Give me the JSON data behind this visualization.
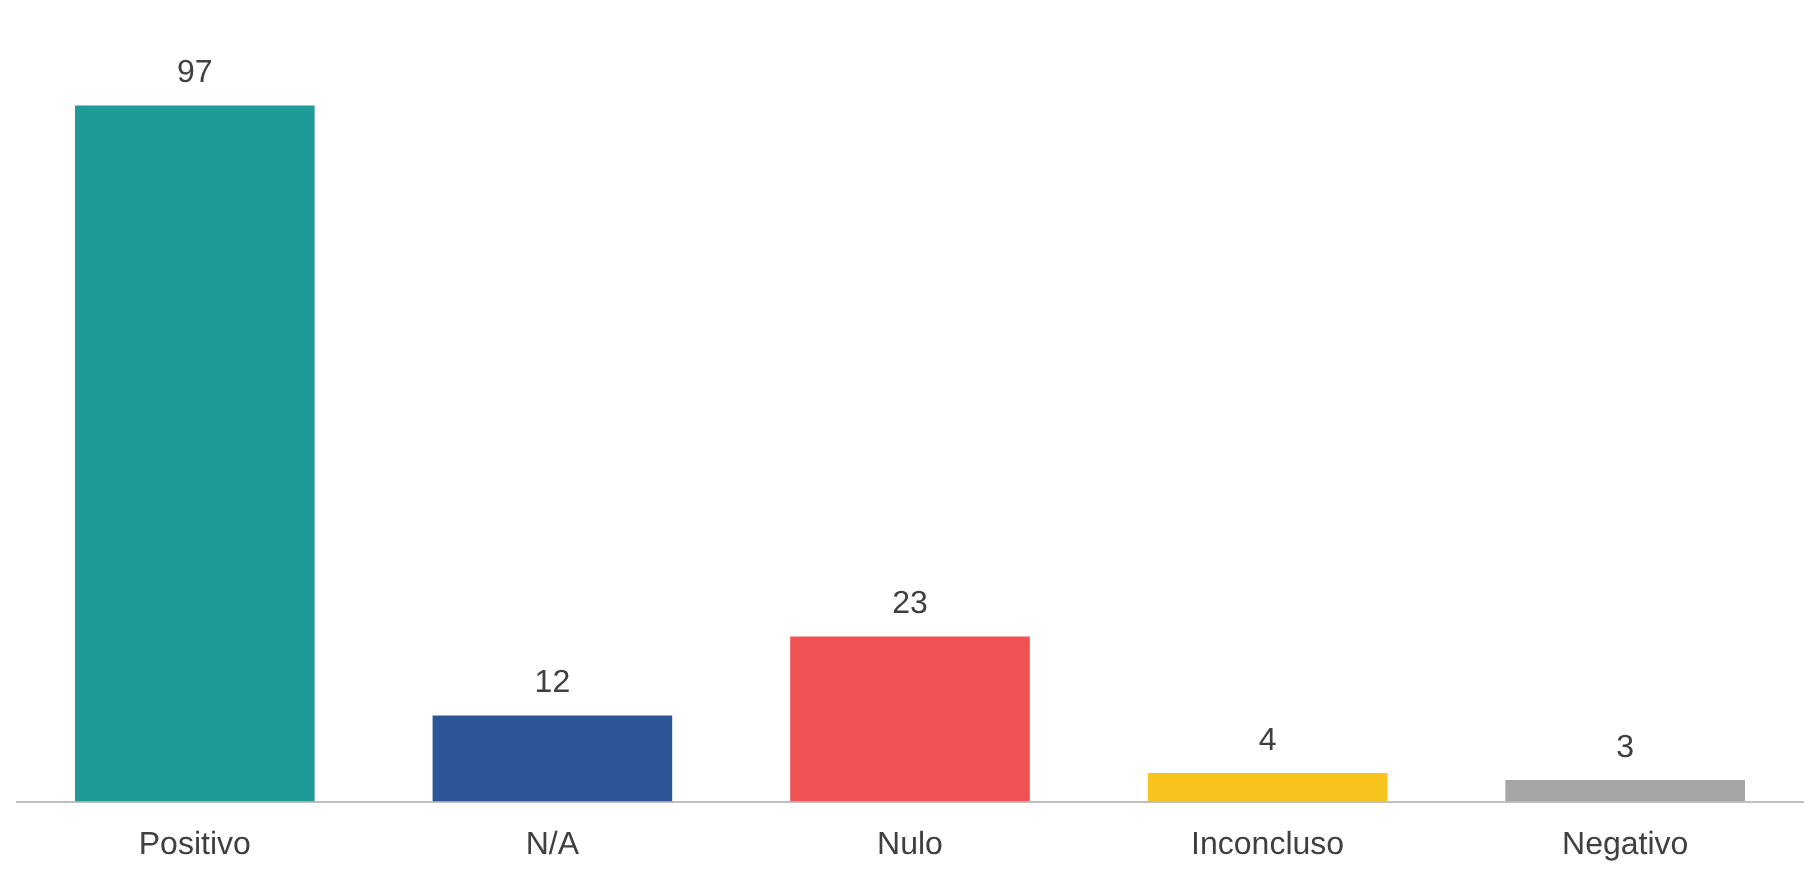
{
  "chart_data": {
    "type": "bar",
    "categories": [
      "Positivo",
      "N/A",
      "Nulo",
      "Inconcluso",
      "Negativo"
    ],
    "values": [
      97,
      12,
      23,
      4,
      3
    ],
    "colors": [
      "#1f9a98",
      "#2b5597",
      "#ef5353",
      "#f8c31c",
      "#a5a5a5"
    ],
    "data_labels": true,
    "grid": false,
    "legend": false
  }
}
